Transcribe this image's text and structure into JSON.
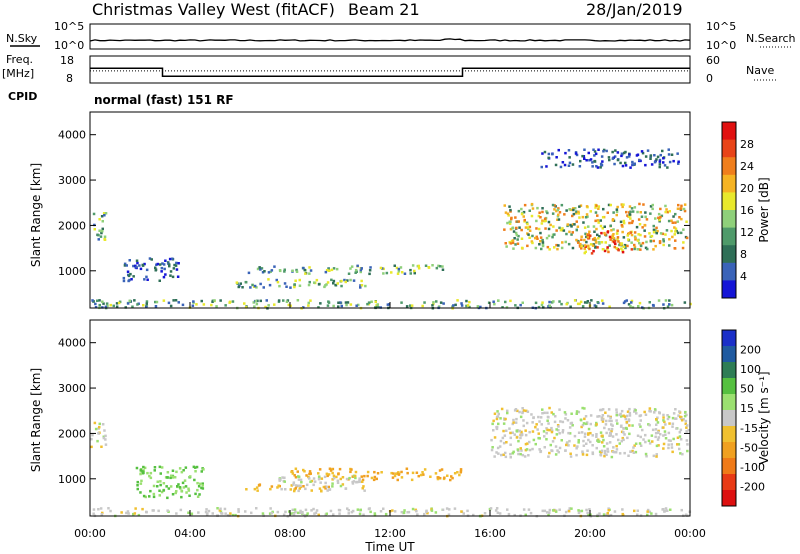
{
  "header": {
    "station": "Christmas Valley West (fitACF)",
    "beam": "Beam 21",
    "date": "28/Jan/2019"
  },
  "status": {
    "nsky_label": "N.Sky",
    "nsearch_label": "N.Search",
    "freq_label_1": "Freq.",
    "freq_label_2": "[MHz]",
    "nave_label": "Nave",
    "cpid_label": "CPID",
    "cpid_value": "normal (fast) 151 RF",
    "nsky_ticks": [
      "10^5",
      "10^0"
    ],
    "nsearch_ticks": [
      "10^5",
      "10^0"
    ],
    "freq_ticks": [
      "18",
      "8"
    ],
    "nave_ticks": [
      "60",
      "0"
    ],
    "freq_steps": [
      [
        0,
        13.5
      ],
      [
        2.9,
        10.1
      ],
      [
        14.9,
        13.5
      ],
      [
        24,
        13.5
      ]
    ],
    "nave_level": 0.45
  },
  "chart_data": [
    {
      "type": "heatmap",
      "name": "power",
      "ylabel": "Slant Range [km]",
      "yticks": [
        "1000",
        "2000",
        "3000",
        "4000"
      ],
      "ylim": [
        180,
        4500
      ],
      "xlim": [
        0,
        24
      ],
      "colorbar": {
        "label": "Power [dB]",
        "ticks": [
          "4",
          "8",
          "12",
          "16",
          "20",
          "24",
          "28"
        ],
        "colors": [
          "#1515d6",
          "#3a63b8",
          "#2f6f57",
          "#4f9a6a",
          "#8fd07a",
          "#e8e82c",
          "#f5b323",
          "#ef7e1c",
          "#e84418",
          "#e01010"
        ]
      },
      "regions": [
        {
          "t0": 0.0,
          "t1": 0.6,
          "r0": 1700,
          "r1": 2300,
          "level": "mid"
        },
        {
          "t0": 1.3,
          "t1": 3.6,
          "r0": 800,
          "r1": 1300,
          "level": "low"
        },
        {
          "t0": 5.7,
          "t1": 11.0,
          "r0": 650,
          "r1": 850,
          "level": "mid"
        },
        {
          "t0": 6.3,
          "t1": 14.2,
          "r0": 960,
          "r1": 1150,
          "level": "mid"
        },
        {
          "t0": 16.5,
          "t1": 23.9,
          "r0": 1500,
          "r1": 2500,
          "level": "high"
        },
        {
          "t0": 19.5,
          "t1": 22.0,
          "r0": 1400,
          "r1": 1900,
          "level": "peak"
        },
        {
          "t0": 18.0,
          "t1": 23.5,
          "r0": 3300,
          "r1": 3700,
          "level": "low"
        },
        {
          "t0": 0.0,
          "t1": 24.0,
          "r0": 200,
          "r1": 380,
          "level": "mid"
        }
      ]
    },
    {
      "type": "heatmap",
      "name": "velocity",
      "ylabel": "Slant Range [km]",
      "yticks": [
        "1000",
        "2000",
        "3000",
        "4000"
      ],
      "ylim": [
        180,
        4500
      ],
      "xlim": [
        0,
        24
      ],
      "colorbar": {
        "label": "Velocity [m s⁻¹]",
        "ticks": [
          "200",
          "100",
          "50",
          "15",
          "-15",
          "-50",
          "-100",
          "-200"
        ],
        "colors": [
          "#1a2fc8",
          "#1f5aa0",
          "#2e7d55",
          "#55c040",
          "#9be070",
          "#c8c8c8",
          "#f0c030",
          "#f0a020",
          "#ef7a18",
          "#e83a15",
          "#dd1010"
        ]
      },
      "regions": [
        {
          "t0": 0.0,
          "t1": 0.6,
          "r0": 1700,
          "r1": 2300,
          "level": "gray"
        },
        {
          "t0": 1.8,
          "t1": 4.5,
          "r0": 600,
          "r1": 1300,
          "level": "green"
        },
        {
          "t0": 6.2,
          "t1": 9.5,
          "r0": 750,
          "r1": 900,
          "level": "orange"
        },
        {
          "t0": 8.0,
          "t1": 14.8,
          "r0": 1000,
          "r1": 1250,
          "level": "orange"
        },
        {
          "t0": 7.5,
          "t1": 11.0,
          "r0": 750,
          "r1": 1100,
          "level": "gray"
        },
        {
          "t0": 16.0,
          "t1": 23.9,
          "r0": 1500,
          "r1": 2600,
          "level": "gray"
        },
        {
          "t0": 0.0,
          "t1": 24.0,
          "r0": 200,
          "r1": 380,
          "level": "gray"
        }
      ]
    }
  ],
  "x_axis": {
    "label": "Time UT",
    "ticks": [
      "00:00",
      "04:00",
      "08:00",
      "12:00",
      "16:00",
      "20:00",
      "00:00"
    ]
  }
}
